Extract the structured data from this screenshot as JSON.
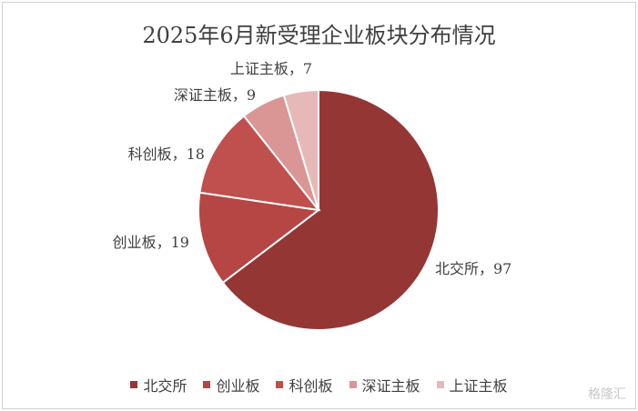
{
  "chart_data": {
    "type": "pie",
    "title": "2025年6月新受理企业板块分布情况",
    "categories": [
      "北交所",
      "创业板",
      "科创板",
      "深证主板",
      "上证主板"
    ],
    "values": [
      97,
      19,
      18,
      9,
      7
    ],
    "data_labels": [
      "北交所，97",
      "创业板，19",
      "科创板，18",
      "深证主板，9",
      "上证主板，7"
    ],
    "colors": [
      "#943634",
      "#B54644",
      "#C0504D",
      "#D99694",
      "#E6B9B8"
    ],
    "legend_position": "bottom"
  },
  "watermark": "格隆汇"
}
